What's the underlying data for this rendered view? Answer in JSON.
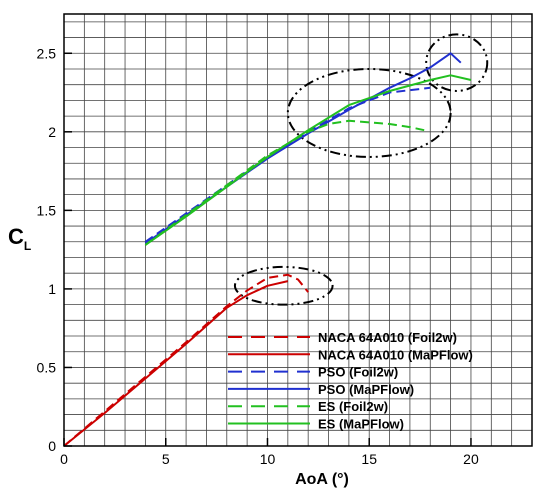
{
  "chart_data": {
    "type": "line",
    "xlabel": "AoA (°)",
    "ylabel": "C",
    "ylabel_sub": "L",
    "xlim": [
      0,
      23
    ],
    "ylim": [
      0,
      2.75
    ],
    "grid": true,
    "x_ticks": [
      0,
      5,
      10,
      15,
      20
    ],
    "y_ticks": [
      0,
      0.5,
      1,
      1.5,
      2,
      2.5
    ],
    "x_tick_labels": [
      "0",
      "5",
      "10",
      "15",
      "20"
    ],
    "y_tick_labels": [
      "0",
      "0.5",
      "1",
      "1.5",
      "2",
      "2.5"
    ],
    "legend_position": "bottom-right",
    "series": [
      {
        "name": "NACA 64A010 (Foil2w)",
        "color": "#cc0000",
        "dash": true,
        "x": [
          0,
          2,
          4,
          6,
          8,
          9,
          10,
          11,
          11.5,
          12
        ],
        "y": [
          0,
          0.22,
          0.44,
          0.66,
          0.89,
          0.99,
          1.07,
          1.09,
          1.06,
          0.98
        ]
      },
      {
        "name": "NACA 64A010 (MaPFlow)",
        "color": "#cc0000",
        "dash": false,
        "x": [
          0,
          2,
          4,
          6,
          8,
          9,
          10,
          11
        ],
        "y": [
          0,
          0.21,
          0.43,
          0.65,
          0.88,
          0.96,
          1.02,
          1.05
        ]
      },
      {
        "name": "PSO (Foil2w)",
        "color": "#2030d0",
        "dash": true,
        "x": [
          4,
          6,
          8,
          10,
          12,
          14,
          16,
          18
        ],
        "y": [
          1.3,
          1.48,
          1.66,
          1.84,
          2.0,
          2.15,
          2.25,
          2.28
        ]
      },
      {
        "name": "PSO (MaPFlow)",
        "color": "#2030d0",
        "dash": false,
        "x": [
          4,
          6,
          8,
          10,
          12,
          14,
          16,
          17,
          18,
          19,
          19.5
        ],
        "y": [
          1.29,
          1.47,
          1.65,
          1.83,
          1.99,
          2.14,
          2.28,
          2.34,
          2.41,
          2.5,
          2.44
        ]
      },
      {
        "name": "ES (Foil2w)",
        "color": "#22c020",
        "dash": true,
        "x": [
          4,
          6,
          8,
          10,
          12,
          13,
          14,
          15,
          16,
          17,
          17.7
        ],
        "y": [
          1.28,
          1.47,
          1.66,
          1.85,
          2.0,
          2.05,
          2.07,
          2.06,
          2.05,
          2.03,
          2.01
        ]
      },
      {
        "name": "ES (MaPFlow)",
        "color": "#22c020",
        "dash": false,
        "x": [
          4,
          6,
          8,
          10,
          12,
          14,
          16,
          18,
          19,
          20
        ],
        "y": [
          1.28,
          1.46,
          1.65,
          1.84,
          2.01,
          2.17,
          2.26,
          2.33,
          2.36,
          2.33
        ]
      }
    ]
  }
}
